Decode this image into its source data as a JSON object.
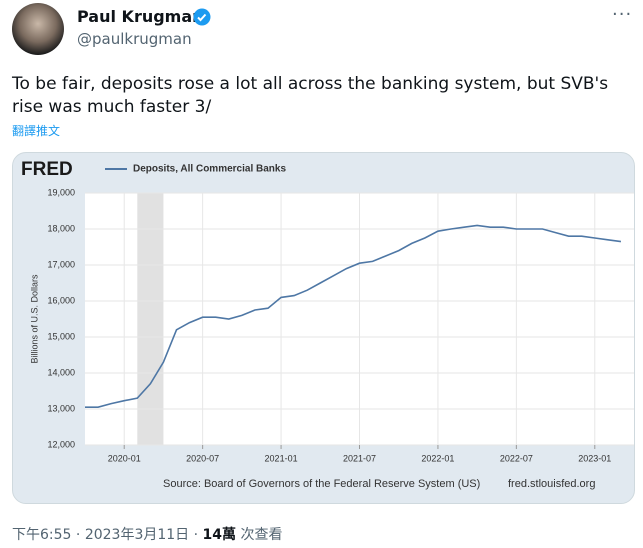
{
  "tweet": {
    "name": "Paul Krugman",
    "handle": "@paulkrugman",
    "text": "To be fair, deposits rose a lot all across the banking system, but SVB's rise was much faster 3/",
    "translate": "翻譯推文",
    "time": "下午6:55",
    "separator": "·",
    "date": "2023年3月11日",
    "views": "14萬",
    "views_label": "次查看"
  },
  "chart_data": {
    "type": "line",
    "logo": "FRED",
    "y_label": "Billions of U.S. Dollars",
    "source": "Source: Board of Governors of the Federal Reserve System (US)",
    "url": "fred.stlouisfed.org",
    "x": [
      "2019-10",
      "2019-11",
      "2019-12",
      "2020-01",
      "2020-02",
      "2020-03",
      "2020-04",
      "2020-05",
      "2020-06",
      "2020-07",
      "2020-08",
      "2020-09",
      "2020-10",
      "2020-11",
      "2020-12",
      "2021-01",
      "2021-02",
      "2021-03",
      "2021-04",
      "2021-05",
      "2021-06",
      "2021-07",
      "2021-08",
      "2021-09",
      "2021-10",
      "2021-11",
      "2021-12",
      "2022-01",
      "2022-02",
      "2022-03",
      "2022-04",
      "2022-05",
      "2022-06",
      "2022-07",
      "2022-08",
      "2022-09",
      "2022-10",
      "2022-11",
      "2022-12",
      "2023-01",
      "2023-02",
      "2023-03"
    ],
    "series": [
      {
        "name": "Deposits, All Commercial Banks",
        "color": "#4e77a5",
        "values": [
          13050,
          13050,
          13150,
          13230,
          13300,
          13700,
          14300,
          15200,
          15400,
          15550,
          15550,
          15500,
          15600,
          15750,
          15800,
          16100,
          16150,
          16300,
          16500,
          16700,
          16900,
          17050,
          17100,
          17250,
          17400,
          17600,
          17750,
          17940,
          18000,
          18050,
          18100,
          18050,
          18050,
          18000,
          18000,
          18000,
          17900,
          17800,
          17800,
          17750,
          17700,
          17650
        ]
      }
    ],
    "xlim": [
      "2019-10",
      "2023-04"
    ],
    "xticks": [
      "2020-01",
      "2020-07",
      "2021-01",
      "2021-07",
      "2022-01",
      "2022-07",
      "2023-01"
    ],
    "ylim": [
      12000,
      19000
    ],
    "yticks": [
      {
        "value": 12000,
        "label": "12,000"
      },
      {
        "value": 13000,
        "label": "13,000"
      },
      {
        "value": 14000,
        "label": "14,000"
      },
      {
        "value": 15000,
        "label": "15,000"
      },
      {
        "value": 16000,
        "label": "16,000"
      },
      {
        "value": 17000,
        "label": "17,000"
      },
      {
        "value": 18000,
        "label": "18,000"
      },
      {
        "value": 19000,
        "label": "19,000"
      }
    ],
    "grid": true,
    "recession": [
      "2020-02",
      "2020-04"
    ]
  }
}
